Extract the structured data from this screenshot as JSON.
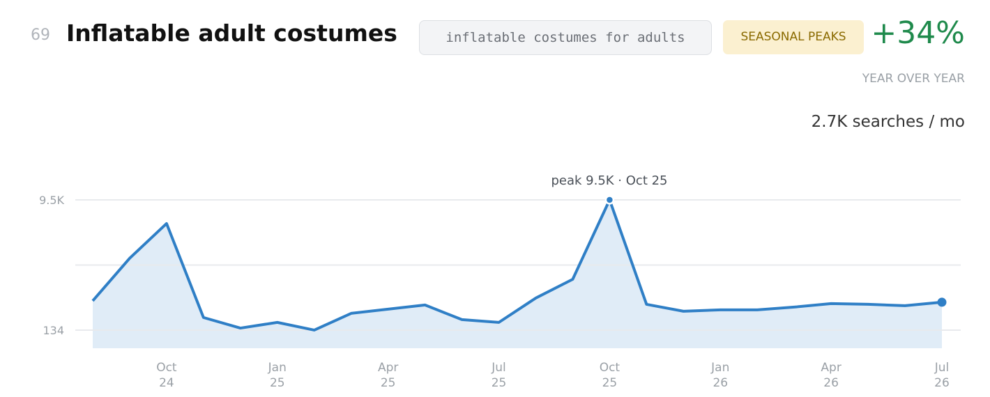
{
  "header": {
    "rank": "69",
    "title": "Inflatable adult costumes",
    "keyword": "inflatable costumes for adults",
    "badge": "SEASONAL PEAKS",
    "change": "+34%",
    "change_label": "YEAR OVER YEAR",
    "volume": "2.7K searches / mo"
  },
  "chart_data": {
    "type": "line",
    "annotation": "peak 9.5K · Oct 25",
    "categories": [
      null,
      null,
      "Oct 24",
      null,
      null,
      "Jan 25",
      null,
      null,
      "Apr 25",
      null,
      null,
      "Jul 25",
      null,
      null,
      "Oct 25",
      null,
      null,
      "Jan 26",
      null,
      null,
      "Apr 26",
      null,
      null,
      "Jul 26"
    ],
    "series": [
      {
        "color": "#2f7fc6",
        "values": [
          2240,
          5300,
          7800,
          1040,
          280,
          690,
          134,
          1340,
          1640,
          1940,
          890,
          690,
          2440,
          3790,
          9500,
          1990,
          1490,
          1590,
          1590,
          1790,
          2040,
          1990,
          1890,
          2140
        ]
      }
    ],
    "ylim": [
      -1170,
      9500
    ],
    "yticks": [
      {
        "value": 134,
        "label": "134"
      },
      {
        "value": 9500,
        "label": "9.5K"
      }
    ],
    "minor_grid": [
      4817
    ],
    "peak_index": 14,
    "grid": true
  }
}
